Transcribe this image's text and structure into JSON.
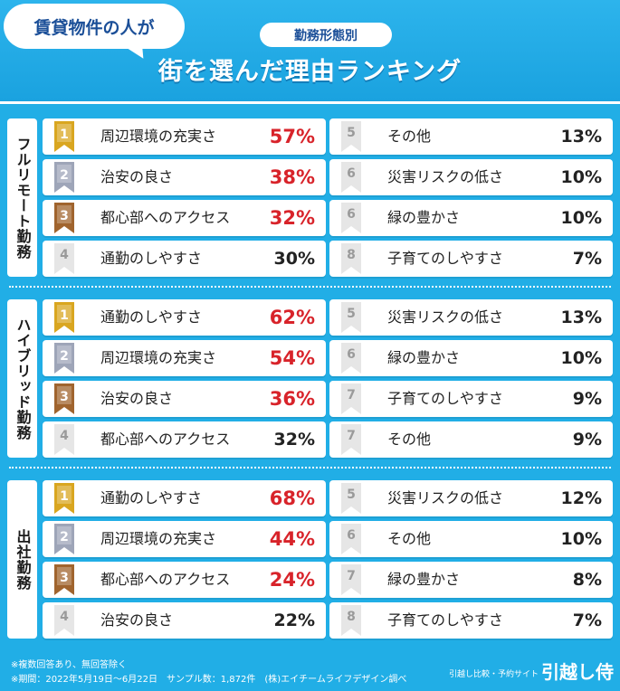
{
  "header": {
    "bubble_text": "賃貸物件の人が",
    "pill_text": "勤務形態別",
    "title": "街を選んだ理由ランキング"
  },
  "chart_data": {
    "type": "table",
    "title": "街を選んだ理由ランキング",
    "unit": "%",
    "groups": [
      {
        "name": "フルリモート勤務",
        "items": [
          {
            "rank": "1",
            "label": "周辺環境の充実さ",
            "value": 57
          },
          {
            "rank": "2",
            "label": "治安の良さ",
            "value": 38
          },
          {
            "rank": "3",
            "label": "都心部へのアクセス",
            "value": 32
          },
          {
            "rank": "4",
            "label": "通勤のしやすさ",
            "value": 30
          },
          {
            "rank": "5",
            "label": "その他",
            "value": 13
          },
          {
            "rank": "6",
            "label": "災害リスクの低さ",
            "value": 10
          },
          {
            "rank": "6",
            "label": "緑の豊かさ",
            "value": 10
          },
          {
            "rank": "8",
            "label": "子育てのしやすさ",
            "value": 7
          }
        ]
      },
      {
        "name": "ハイブリッド勤務",
        "items": [
          {
            "rank": "1",
            "label": "通勤のしやすさ",
            "value": 62
          },
          {
            "rank": "2",
            "label": "周辺環境の充実さ",
            "value": 54
          },
          {
            "rank": "3",
            "label": "治安の良さ",
            "value": 36
          },
          {
            "rank": "4",
            "label": "都心部へのアクセス",
            "value": 32
          },
          {
            "rank": "5",
            "label": "災害リスクの低さ",
            "value": 13
          },
          {
            "rank": "6",
            "label": "緑の豊かさ",
            "value": 10
          },
          {
            "rank": "7",
            "label": "子育てのしやすさ",
            "value": 9
          },
          {
            "rank": "7",
            "label": "その他",
            "value": 9
          }
        ]
      },
      {
        "name": "出社勤務",
        "items": [
          {
            "rank": "1",
            "label": "通勤のしやすさ",
            "value": 68
          },
          {
            "rank": "2",
            "label": "周辺環境の充実さ",
            "value": 44
          },
          {
            "rank": "3",
            "label": "都心部へのアクセス",
            "value": 24
          },
          {
            "rank": "4",
            "label": "治安の良さ",
            "value": 22
          },
          {
            "rank": "5",
            "label": "災害リスクの低さ",
            "value": 12
          },
          {
            "rank": "6",
            "label": "その他",
            "value": 10
          },
          {
            "rank": "7",
            "label": "緑の豊かさ",
            "value": 8
          },
          {
            "rank": "8",
            "label": "子育てのしやすさ",
            "value": 7
          }
        ]
      }
    ]
  },
  "footer": {
    "note1": "※複数回答あり、無回答除く",
    "note2": "※期間：2022年5月19日〜6月22日　サンプル数：1,872件　(株)エイチームライフデザイン調べ",
    "brand_small": "引越し比較・予約サイト",
    "brand_big": "引越し侍"
  },
  "colors": {
    "background": "#21aee6",
    "highlight_pct": "#d8232a",
    "gold": "#d9a620",
    "silver": "#9ea5b8",
    "bronze": "#a0642e",
    "title_blue": "#1b4f98"
  }
}
